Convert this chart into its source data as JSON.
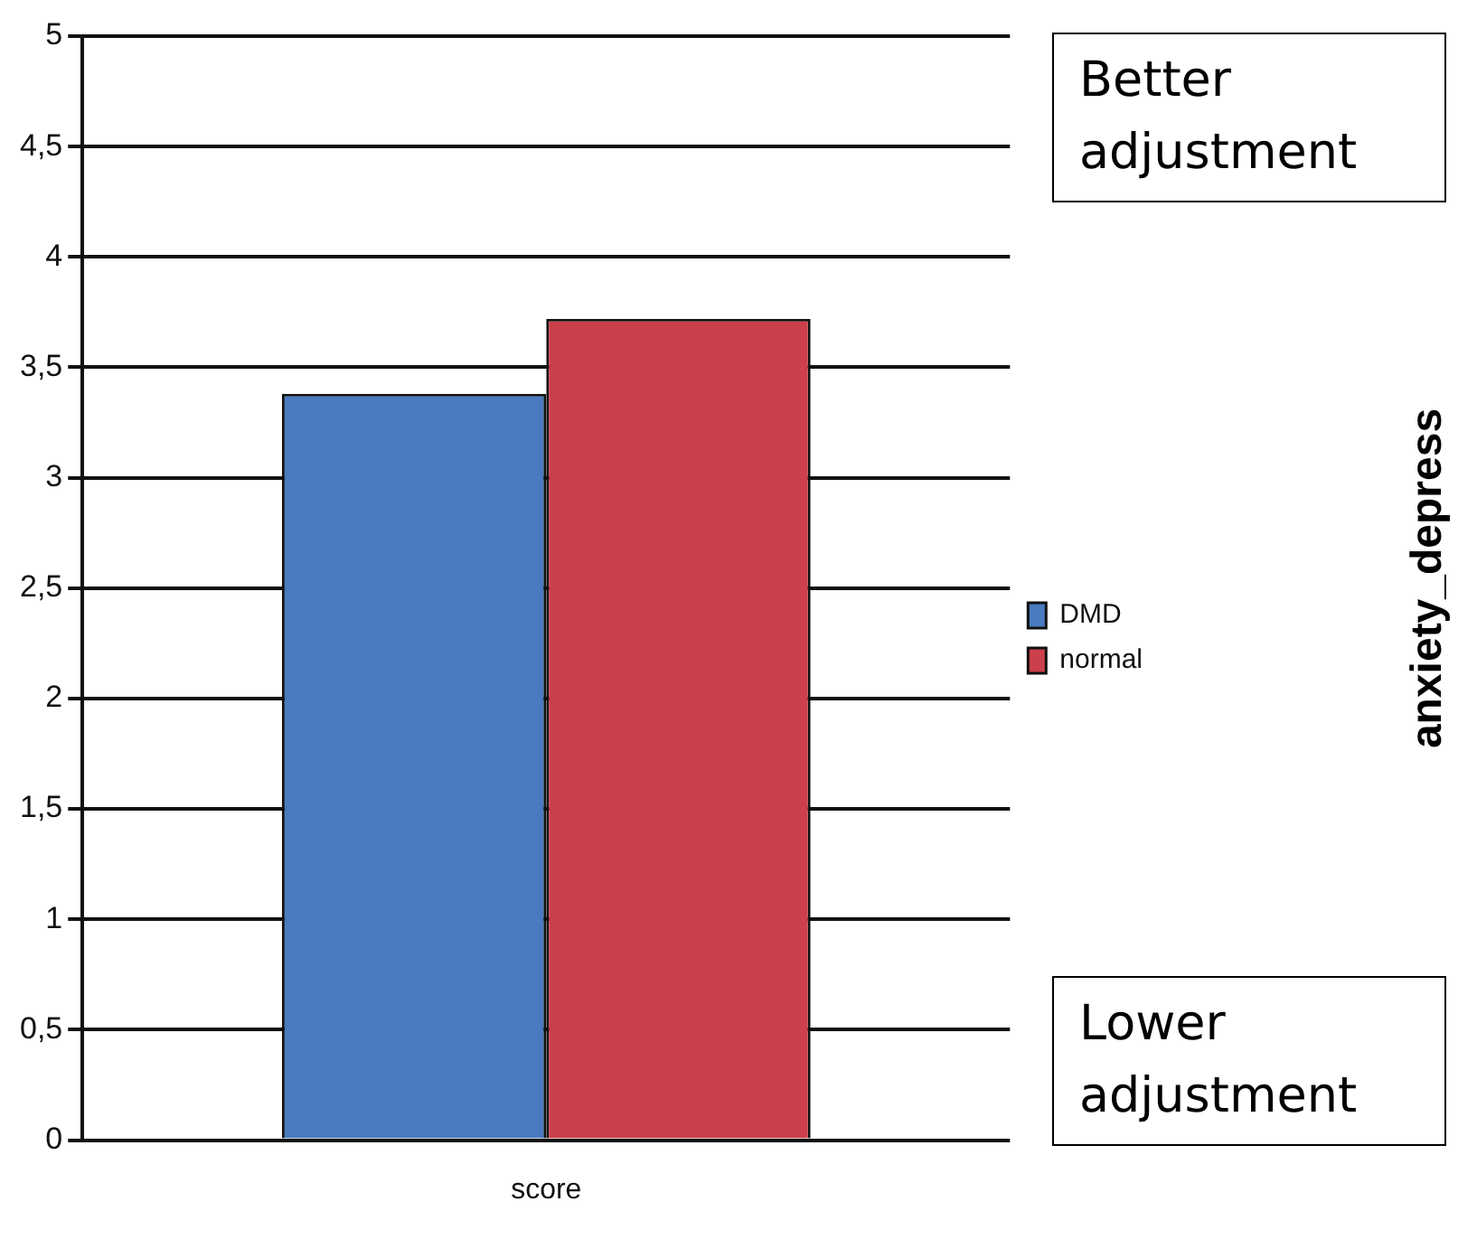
{
  "chart_data": {
    "type": "bar",
    "categories": [
      "score"
    ],
    "series": [
      {
        "name": "DMD",
        "color": "#4a7bbf",
        "values": [
          3.38
        ]
      },
      {
        "name": "normal",
        "color": "#cb404a",
        "values": [
          3.72
        ]
      }
    ],
    "annotations": [
      "Better adjustment",
      "Lower adjustment",
      "anxiety_depress"
    ],
    "ylim": [
      0,
      5
    ],
    "yticks": [
      0,
      {
        "value": 0.5,
        "label": "0,5"
      },
      1,
      {
        "value": 1.5,
        "label": "1,5"
      },
      2,
      {
        "value": 2.5,
        "label": "2,5"
      },
      3,
      {
        "value": 3.5,
        "label": "3,5"
      },
      4,
      {
        "value": 4.5,
        "label": "4,5"
      },
      5
    ],
    "grid": "y",
    "legend": "right"
  }
}
